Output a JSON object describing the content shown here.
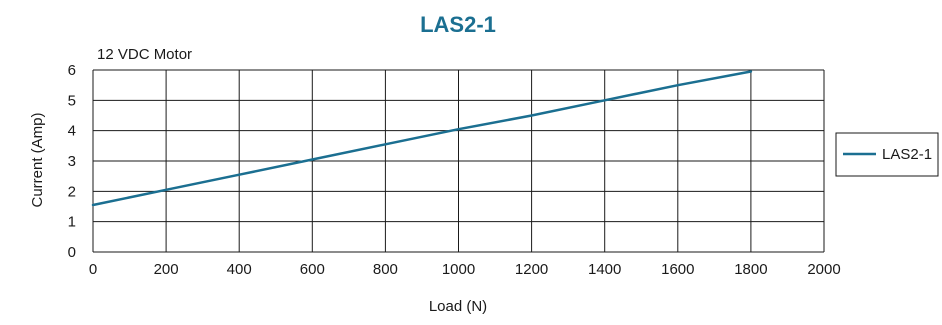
{
  "chart_data": {
    "type": "line",
    "title": "LAS2-1",
    "subtitle": "12 VDC Motor",
    "xlabel": "Load (N)",
    "ylabel": "Current (Amp)",
    "xlim": [
      0,
      2000
    ],
    "ylim": [
      0,
      6
    ],
    "x_ticks": [
      "0",
      "200",
      "400",
      "600",
      "800",
      "1000",
      "1200",
      "1400",
      "1600",
      "1800",
      "2000"
    ],
    "y_ticks": [
      "0",
      "1",
      "2",
      "3",
      "4",
      "5",
      "6"
    ],
    "grid": true,
    "legend_position": "right",
    "series": [
      {
        "name": "LAS2-1",
        "color": "#1b6f91",
        "x": [
          0,
          200,
          400,
          600,
          800,
          1000,
          1200,
          1400,
          1600,
          1800
        ],
        "y": [
          1.55,
          2.05,
          2.55,
          3.05,
          3.55,
          4.05,
          4.5,
          5.0,
          5.5,
          5.95
        ]
      }
    ]
  }
}
